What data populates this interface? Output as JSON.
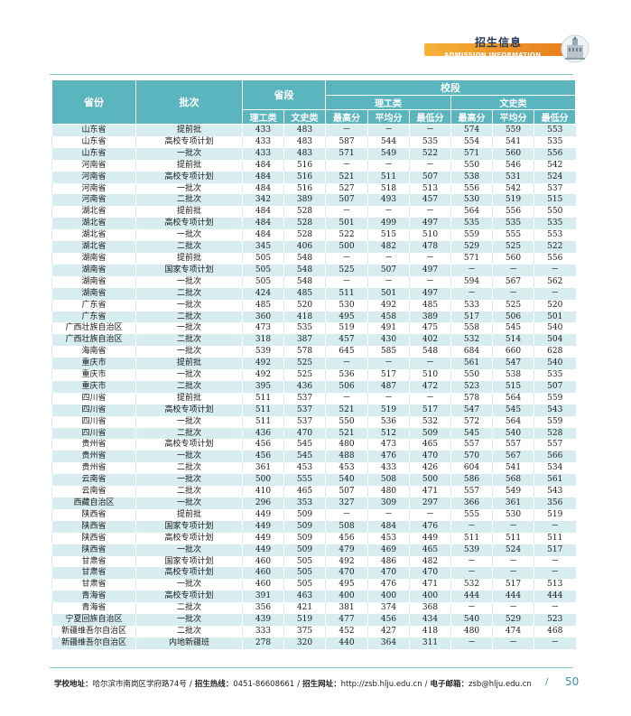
{
  "header": {
    "title_cn": "招生信息",
    "title_en": "ADMISSION INFORMATION",
    "colors": {
      "accent": "#e88a20",
      "table_header": "#5bb5bf",
      "row_alt": "#d7edf0",
      "page_num": "#3b8fb0"
    }
  },
  "table": {
    "headers": {
      "province": "省份",
      "batch": "批次",
      "prov_line": "省段",
      "school_line": "校段",
      "sci": "理工类",
      "arts": "文史类",
      "prov_sci": "理工类",
      "prov_arts": "文史类",
      "max": "最高分",
      "avg": "平均分",
      "min": "最低分",
      "max2": "最高分",
      "avg2": "平均分",
      "min2": "最低分"
    },
    "rows": [
      [
        "山东省",
        "提前批",
        "433",
        "483",
        "－",
        "－",
        "－",
        "574",
        "559",
        "553"
      ],
      [
        "山东省",
        "高校专项计划",
        "433",
        "483",
        "587",
        "544",
        "535",
        "554",
        "541",
        "535"
      ],
      [
        "山东省",
        "一批次",
        "433",
        "483",
        "571",
        "549",
        "522",
        "571",
        "560",
        "556"
      ],
      [
        "河南省",
        "提前批",
        "484",
        "516",
        "－",
        "－",
        "－",
        "550",
        "546",
        "542"
      ],
      [
        "河南省",
        "高校专项计划",
        "484",
        "516",
        "521",
        "511",
        "507",
        "538",
        "531",
        "524"
      ],
      [
        "河南省",
        "一批次",
        "484",
        "516",
        "527",
        "518",
        "513",
        "556",
        "542",
        "537"
      ],
      [
        "河南省",
        "二批次",
        "342",
        "389",
        "507",
        "493",
        "457",
        "530",
        "519",
        "515"
      ],
      [
        "湖北省",
        "提前批",
        "484",
        "528",
        "－",
        "－",
        "－",
        "564",
        "556",
        "550"
      ],
      [
        "湖北省",
        "高校专项计划",
        "484",
        "528",
        "501",
        "499",
        "497",
        "535",
        "535",
        "535"
      ],
      [
        "湖北省",
        "一批次",
        "484",
        "528",
        "522",
        "515",
        "510",
        "559",
        "555",
        "553"
      ],
      [
        "湖北省",
        "二批次",
        "345",
        "406",
        "500",
        "482",
        "478",
        "529",
        "525",
        "522"
      ],
      [
        "湖南省",
        "提前批",
        "505",
        "548",
        "－",
        "－",
        "－",
        "571",
        "560",
        "556"
      ],
      [
        "湖南省",
        "国家专项计划",
        "505",
        "548",
        "525",
        "507",
        "497",
        "－",
        "－",
        "－"
      ],
      [
        "湖南省",
        "一批次",
        "505",
        "548",
        "－",
        "－",
        "－",
        "594",
        "567",
        "562"
      ],
      [
        "湖南省",
        "二批次",
        "424",
        "485",
        "511",
        "501",
        "497",
        "－",
        "－",
        "－"
      ],
      [
        "广东省",
        "一批次",
        "485",
        "520",
        "530",
        "492",
        "485",
        "533",
        "525",
        "520"
      ],
      [
        "广东省",
        "二批次",
        "360",
        "418",
        "495",
        "458",
        "389",
        "517",
        "506",
        "501"
      ],
      [
        "广西壮族自治区",
        "一批次",
        "473",
        "535",
        "519",
        "491",
        "475",
        "558",
        "545",
        "540"
      ],
      [
        "广西壮族自治区",
        "二批次",
        "318",
        "387",
        "457",
        "430",
        "402",
        "532",
        "514",
        "504"
      ],
      [
        "海南省",
        "一批次",
        "539",
        "578",
        "645",
        "585",
        "548",
        "684",
        "660",
        "628"
      ],
      [
        "重庆市",
        "提前批",
        "492",
        "525",
        "－",
        "－",
        "－",
        "561",
        "547",
        "540"
      ],
      [
        "重庆市",
        "一批次",
        "492",
        "525",
        "536",
        "517",
        "510",
        "550",
        "538",
        "535"
      ],
      [
        "重庆市",
        "二批次",
        "395",
        "436",
        "506",
        "487",
        "472",
        "523",
        "515",
        "507"
      ],
      [
        "四川省",
        "提前批",
        "511",
        "537",
        "－",
        "－",
        "－",
        "578",
        "564",
        "559"
      ],
      [
        "四川省",
        "高校专项计划",
        "511",
        "537",
        "521",
        "519",
        "517",
        "547",
        "545",
        "543"
      ],
      [
        "四川省",
        "一批次",
        "511",
        "537",
        "550",
        "536",
        "532",
        "572",
        "564",
        "559"
      ],
      [
        "四川省",
        "二批次",
        "436",
        "470",
        "521",
        "512",
        "509",
        "545",
        "540",
        "528"
      ],
      [
        "贵州省",
        "高校专项计划",
        "456",
        "545",
        "480",
        "473",
        "465",
        "557",
        "557",
        "557"
      ],
      [
        "贵州省",
        "一批次",
        "456",
        "545",
        "488",
        "476",
        "470",
        "570",
        "567",
        "566"
      ],
      [
        "贵州省",
        "二批次",
        "361",
        "453",
        "453",
        "433",
        "426",
        "604",
        "541",
        "534"
      ],
      [
        "云南省",
        "一批次",
        "500",
        "555",
        "540",
        "508",
        "500",
        "586",
        "568",
        "561"
      ],
      [
        "云南省",
        "二批次",
        "410",
        "465",
        "507",
        "480",
        "471",
        "557",
        "549",
        "543"
      ],
      [
        "西藏自治区",
        "一批次",
        "296",
        "353",
        "327",
        "309",
        "297",
        "366",
        "361",
        "356"
      ],
      [
        "陕西省",
        "提前批",
        "449",
        "509",
        "－",
        "－",
        "－",
        "555",
        "530",
        "519"
      ],
      [
        "陕西省",
        "国家专项计划",
        "449",
        "509",
        "508",
        "484",
        "476",
        "－",
        "－",
        "－"
      ],
      [
        "陕西省",
        "高校专项计划",
        "449",
        "509",
        "456",
        "453",
        "449",
        "511",
        "511",
        "511"
      ],
      [
        "陕西省",
        "一批次",
        "449",
        "509",
        "479",
        "469",
        "465",
        "539",
        "524",
        "517"
      ],
      [
        "甘肃省",
        "国家专项计划",
        "460",
        "505",
        "492",
        "486",
        "482",
        "－",
        "－",
        "－"
      ],
      [
        "甘肃省",
        "高校专项计划",
        "460",
        "505",
        "470",
        "470",
        "470",
        "－",
        "－",
        "－"
      ],
      [
        "甘肃省",
        "一批次",
        "460",
        "505",
        "495",
        "476",
        "471",
        "532",
        "517",
        "513"
      ],
      [
        "青海省",
        "高校专项计划",
        "391",
        "463",
        "400",
        "400",
        "400",
        "444",
        "444",
        "444"
      ],
      [
        "青海省",
        "二批次",
        "356",
        "421",
        "381",
        "374",
        "368",
        "－",
        "－",
        "－"
      ],
      [
        "宁夏回族自治区",
        "一批次",
        "439",
        "519",
        "477",
        "456",
        "434",
        "540",
        "529",
        "523"
      ],
      [
        "新疆维吾尔自治区",
        "二批次",
        "333",
        "375",
        "452",
        "427",
        "418",
        "480",
        "474",
        "468"
      ],
      [
        "新疆维吾尔自治区",
        "内地新疆班",
        "278",
        "320",
        "440",
        "364",
        "311",
        "－",
        "－",
        "－"
      ]
    ]
  },
  "footer": {
    "addr_label": "学校地址：",
    "addr": "哈尔滨市南岗区学府路74号",
    "hotline_label": "招生热线：",
    "hotline": "0451-86608661",
    "web_label": "招生网址：",
    "web": "http://zsb.hlju.edu.cn",
    "email_label": "电子邮箱：",
    "email": "zsb@hlju.edu.cn",
    "page": "50"
  }
}
